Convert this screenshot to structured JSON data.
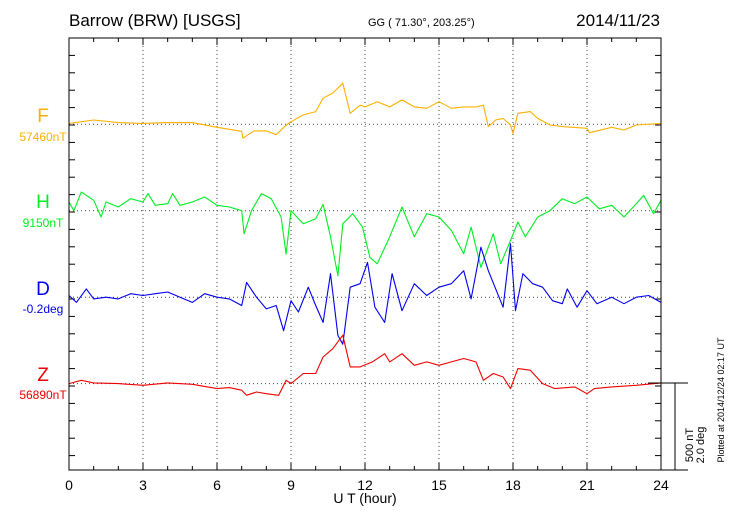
{
  "header": {
    "title": "Barrow (BRW)  [USGS]",
    "coords": "GG ( 71.30°, 203.25°)",
    "date": "2014/11/23"
  },
  "footer": {
    "plotted": "Plotted at 2014/12/24 02:17 UT"
  },
  "chart_data": {
    "type": "line",
    "title": "Barrow (BRW)  [USGS]",
    "xlabel": "U T (hour)",
    "xlim": [
      0,
      24
    ],
    "xticks": [
      "0",
      "3",
      "6",
      "9",
      "12",
      "15",
      "18",
      "21",
      "24"
    ],
    "scale": {
      "nT_label": "500 nT",
      "deg_label": "2.0 deg",
      "nT": 500,
      "deg": 2.0
    },
    "grid": true,
    "series": [
      {
        "name": "F",
        "baseline_label": "57460nT",
        "unit": "nT",
        "color": "#ffb000",
        "x": [
          0,
          1,
          2,
          3,
          4,
          5,
          6,
          7,
          7.05,
          7.5,
          8,
          8.4,
          8.8,
          9,
          9.5,
          10,
          10.3,
          10.7,
          11.1,
          11.4,
          11.8,
          12,
          12.5,
          13,
          13.5,
          14,
          14.5,
          15,
          15.5,
          16,
          16.5,
          16.8,
          17,
          17.3,
          17.6,
          17.9,
          18,
          18.2,
          18.7,
          19,
          19.5,
          20,
          21,
          21.1,
          22,
          22.5,
          23,
          24
        ],
        "y": [
          5,
          25,
          10,
          5,
          10,
          10,
          -17,
          -40,
          -80,
          -38,
          -38,
          -60,
          -5,
          15,
          54,
          73,
          150,
          180,
          236,
          63,
          110,
          100,
          130,
          100,
          140,
          100,
          92,
          130,
          92,
          100,
          100,
          110,
          -13,
          25,
          34,
          -4,
          -52,
          63,
          73,
          34,
          -4,
          -13,
          -23,
          -48,
          -17,
          -33,
          -4,
          5
        ]
      },
      {
        "name": "H",
        "baseline_label": "9150nT",
        "unit": "nT",
        "color": "#00ee22",
        "x": [
          0,
          0.2,
          0.5,
          1,
          1.3,
          1.5,
          2,
          2.5,
          3,
          3.2,
          3.5,
          4,
          4.2,
          4.5,
          5,
          5.5,
          6,
          6.5,
          7,
          7.1,
          7.4,
          7.8,
          8.2,
          8.6,
          8.8,
          9,
          9.5,
          10,
          10.3,
          10.6,
          10.9,
          11.1,
          11.5,
          11.9,
          12.2,
          12.5,
          13,
          13.5,
          14,
          14.5,
          15,
          15.5,
          16,
          16.3,
          16.7,
          17.2,
          17.5,
          17.9,
          18.2,
          18.5,
          19,
          19.5,
          20,
          20.5,
          21,
          21.5,
          22,
          22.5,
          23,
          23.3,
          23.7,
          24
        ],
        "y": [
          50,
          0,
          107,
          60,
          -36,
          50,
          21,
          69,
          50,
          98,
          31,
          40,
          98,
          31,
          50,
          79,
          31,
          21,
          0,
          -132,
          0,
          98,
          69,
          -36,
          -250,
          0,
          -75,
          -46,
          36,
          -150,
          -374,
          -75,
          -17,
          -94,
          -268,
          -305,
          -150,
          21,
          -150,
          -17,
          -36,
          -113,
          -247,
          -94,
          -326,
          -132,
          -305,
          -172,
          -65,
          -150,
          -36,
          0,
          69,
          40,
          79,
          11,
          31,
          -36,
          40,
          88,
          -17,
          60
        ]
      },
      {
        "name": "D",
        "baseline_label": "-0.2deg",
        "unit": "deg",
        "color": "#0000ee",
        "x": [
          0,
          0.3,
          0.7,
          1,
          1.5,
          2,
          2.5,
          3,
          3.5,
          4,
          4.5,
          5,
          5.5,
          6,
          6.5,
          7,
          7.2,
          7.6,
          8,
          8.4,
          8.7,
          9,
          9.3,
          9.7,
          10,
          10.3,
          10.6,
          10.9,
          11.1,
          11.4,
          11.8,
          12.1,
          12.4,
          12.8,
          13.1,
          13.5,
          14,
          14.5,
          15,
          15.5,
          16,
          16.3,
          16.7,
          17,
          17.3,
          17.6,
          17.9,
          18.1,
          18.4,
          18.8,
          19.2,
          19.6,
          20,
          20.2,
          20.6,
          21,
          21.4,
          22,
          22.5,
          23,
          23.5,
          24
        ],
        "y": [
          0.04,
          -0.12,
          0.19,
          -0.04,
          0,
          -0.04,
          0.08,
          0.04,
          0.08,
          0.12,
          0,
          -0.12,
          0.08,
          0,
          -0.04,
          -0.19,
          0.34,
          0,
          -0.27,
          -0.19,
          -0.77,
          -0.08,
          -0.34,
          0.23,
          -0.19,
          -0.58,
          0.54,
          -0.88,
          -1.08,
          0.23,
          0.31,
          0.8,
          -0.23,
          -0.58,
          0.54,
          -0.31,
          0.31,
          0.04,
          0.23,
          0.31,
          0.61,
          -0.04,
          1.15,
          0.61,
          0.19,
          -0.23,
          1.23,
          -0.31,
          0.54,
          0.31,
          0.23,
          -0.08,
          -0.15,
          0.19,
          -0.23,
          0.15,
          -0.15,
          0,
          -0.15,
          0,
          0.04,
          -0.12
        ]
      },
      {
        "name": "Z",
        "baseline_label": "56890nT",
        "unit": "nT",
        "color": "#ee0000",
        "x": [
          0,
          0.5,
          1,
          2,
          3,
          4,
          5,
          6,
          6.5,
          7,
          7.2,
          7.6,
          8,
          8.5,
          8.8,
          9,
          9.5,
          10,
          10.3,
          10.7,
          11.1,
          11.4,
          11.8,
          12.3,
          12.8,
          13,
          13.5,
          14,
          14.5,
          15,
          15.5,
          16,
          16.5,
          16.8,
          17.2,
          17.6,
          17.9,
          18.2,
          18.7,
          19.2,
          19.7,
          20.5,
          21,
          21.3,
          22,
          23,
          24
        ],
        "y": [
          0,
          19,
          4,
          0,
          -10,
          4,
          -4,
          -29,
          -23,
          -38,
          -67,
          -48,
          -58,
          -67,
          19,
          0,
          58,
          58,
          153,
          201,
          278,
          96,
          96,
          125,
          172,
          125,
          172,
          105,
          125,
          105,
          125,
          144,
          125,
          19,
          58,
          38,
          -29,
          86,
          77,
          0,
          -29,
          -19,
          -58,
          -29,
          -19,
          -10,
          4
        ]
      }
    ]
  }
}
